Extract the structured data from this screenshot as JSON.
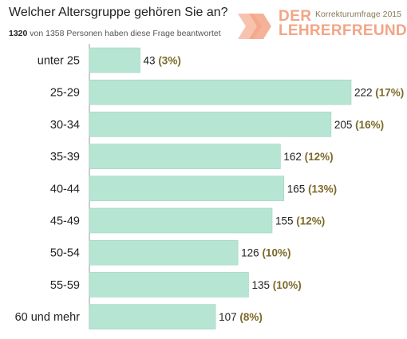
{
  "header": {
    "title": "Welcher Altersgruppe gehören Sie an?",
    "answered_count": "1320",
    "answered_text": " von 1358 Personen haben diese Frage beantwortet"
  },
  "logo": {
    "caption": "Korrekturumfrage 2015",
    "line1": "DER",
    "line2": "LEHRERFREUND",
    "color": "#f3a487"
  },
  "chart_data": {
    "type": "bar",
    "orientation": "horizontal",
    "title": "Welcher Altersgruppe gehören Sie an?",
    "categories": [
      "unter 25",
      "25-29",
      "30-34",
      "35-39",
      "40-44",
      "45-49",
      "50-54",
      "55-59",
      "60 und mehr"
    ],
    "values": [
      43,
      222,
      205,
      162,
      165,
      155,
      126,
      135,
      107
    ],
    "percent_labels": [
      "(3%)",
      "(17%)",
      "(16%)",
      "(12%)",
      "(13%)",
      "(12%)",
      "(10%)",
      "(10%)",
      "(8%)"
    ],
    "bar_color": "#b7e5d3",
    "bar_border_color": "#9fd4c0",
    "percent_color": "#7d6a2a",
    "xlim": [
      0,
      222
    ],
    "grid": false
  }
}
